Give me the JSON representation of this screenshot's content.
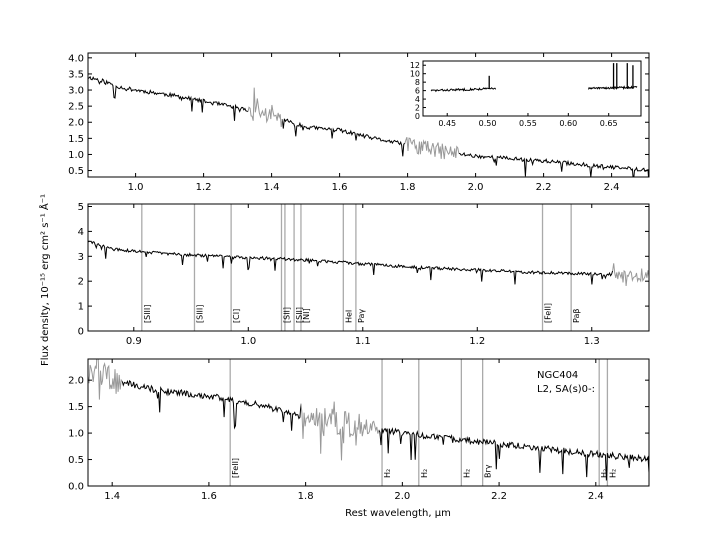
{
  "figure": {
    "ylabel": "Flux density, 10⁻¹⁵ erg cm² s⁻¹ Å⁻¹",
    "xlabel": "Rest wavelength, μm"
  },
  "chart_data": [
    {
      "type": "line",
      "panel": "top",
      "xlim": [
        0.86,
        2.51
      ],
      "ylim": [
        0.3,
        4.15
      ],
      "xticks": [
        "1.0",
        "1.2",
        "1.4",
        "1.6",
        "1.8",
        "2.0",
        "2.2",
        "2.4"
      ],
      "yticks": [
        "0.5",
        "1.0",
        "1.5",
        "2.0",
        "2.5",
        "3.0",
        "3.5",
        "4.0"
      ],
      "spectrum_control_points": [
        [
          0.86,
          3.4
        ],
        [
          0.9,
          3.3
        ],
        [
          0.95,
          3.1
        ],
        [
          1.0,
          3.0
        ],
        [
          1.1,
          2.85
        ],
        [
          1.2,
          2.65
        ],
        [
          1.3,
          2.45
        ],
        [
          1.4,
          2.2
        ],
        [
          1.5,
          1.85
        ],
        [
          1.6,
          1.75
        ],
        [
          1.7,
          1.5
        ],
        [
          1.8,
          1.3
        ],
        [
          1.9,
          1.1
        ],
        [
          2.0,
          0.95
        ],
        [
          2.2,
          0.8
        ],
        [
          2.4,
          0.6
        ],
        [
          2.51,
          0.52
        ]
      ],
      "gray_segments": [
        [
          1.33,
          1.43
        ],
        [
          1.79,
          1.95
        ]
      ],
      "inset": {
        "xlim": [
          0.42,
          0.69
        ],
        "ylim": [
          0,
          13
        ],
        "xticks": [
          "0.45",
          "0.50",
          "0.55",
          "0.60",
          "0.65"
        ],
        "yticks": [
          "0",
          "2",
          "4",
          "6",
          "8",
          "10",
          "12"
        ],
        "segments": [
          {
            "x": [
              0.43,
              0.51
            ],
            "y": [
              6.0,
              6.5
            ]
          },
          {
            "x": [
              0.625,
              0.685
            ],
            "y": [
              6.5,
              6.8
            ]
          }
        ],
        "spikes": [
          [
            0.502,
            9.5
          ],
          [
            0.656,
            12.5
          ],
          [
            0.66,
            12.5
          ],
          [
            0.673,
            12.5
          ],
          [
            0.68,
            12.0
          ]
        ]
      }
    },
    {
      "type": "line",
      "panel": "middle",
      "xlim": [
        0.86,
        1.35
      ],
      "ylim": [
        0,
        5.1
      ],
      "xticks": [
        "0.9",
        "1.0",
        "1.1",
        "1.2",
        "1.3"
      ],
      "yticks": [
        "0",
        "1",
        "2",
        "3",
        "4",
        "5"
      ],
      "spectrum_control_points": [
        [
          0.86,
          3.6
        ],
        [
          0.88,
          3.3
        ],
        [
          0.9,
          3.2
        ],
        [
          0.95,
          3.05
        ],
        [
          1.0,
          2.95
        ],
        [
          1.05,
          2.85
        ],
        [
          1.1,
          2.7
        ],
        [
          1.15,
          2.55
        ],
        [
          1.2,
          2.45
        ],
        [
          1.25,
          2.35
        ],
        [
          1.3,
          2.3
        ],
        [
          1.33,
          2.25
        ],
        [
          1.35,
          2.25
        ]
      ],
      "gray_segments": [
        [
          1.318,
          1.35
        ]
      ],
      "lines": [
        {
          "x": 0.907,
          "label": "[SIII]"
        },
        {
          "x": 0.953,
          "label": "[SIII]"
        },
        {
          "x": 0.985,
          "label": "[CI]"
        },
        {
          "x": 1.029,
          "label": "[SII]"
        },
        {
          "x": 1.032,
          "label": ""
        },
        {
          "x": 1.04,
          "label": "[SII]"
        },
        {
          "x": 1.046,
          "label": "[NI]"
        },
        {
          "x": 1.083,
          "label": "HeI"
        },
        {
          "x": 1.094,
          "label": "Paγ"
        },
        {
          "x": 1.257,
          "label": "[FeII]"
        },
        {
          "x": 1.282,
          "label": "Paβ"
        }
      ]
    },
    {
      "type": "line",
      "panel": "bottom",
      "xlim": [
        1.35,
        2.51
      ],
      "ylim": [
        0,
        2.4
      ],
      "xticks": [
        "1.4",
        "1.6",
        "1.8",
        "2.0",
        "2.2",
        "2.4"
      ],
      "yticks": [
        "0.0",
        "0.5",
        "1.0",
        "1.5",
        "2.0"
      ],
      "spectrum_control_points": [
        [
          1.35,
          2.2
        ],
        [
          1.4,
          2.0
        ],
        [
          1.45,
          1.9
        ],
        [
          1.5,
          1.8
        ],
        [
          1.6,
          1.7
        ],
        [
          1.7,
          1.55
        ],
        [
          1.8,
          1.3
        ],
        [
          1.9,
          1.15
        ],
        [
          2.0,
          1.0
        ],
        [
          2.1,
          0.9
        ],
        [
          2.2,
          0.8
        ],
        [
          2.3,
          0.7
        ],
        [
          2.4,
          0.6
        ],
        [
          2.51,
          0.5
        ]
      ],
      "gray_segments": [
        [
          1.35,
          1.42
        ],
        [
          1.79,
          1.95
        ]
      ],
      "annotation": [
        "NGC404",
        "L2,  SA(s)0-:"
      ],
      "lines": [
        {
          "x": 1.644,
          "label": "[FeII]"
        },
        {
          "x": 1.958,
          "label": "H₂"
        },
        {
          "x": 2.034,
          "label": "H₂"
        },
        {
          "x": 2.122,
          "label": "H₂"
        },
        {
          "x": 2.166,
          "label": "Brγ"
        },
        {
          "x": 2.407,
          "label": "H₂"
        },
        {
          "x": 2.424,
          "label": "H₂"
        }
      ]
    }
  ]
}
